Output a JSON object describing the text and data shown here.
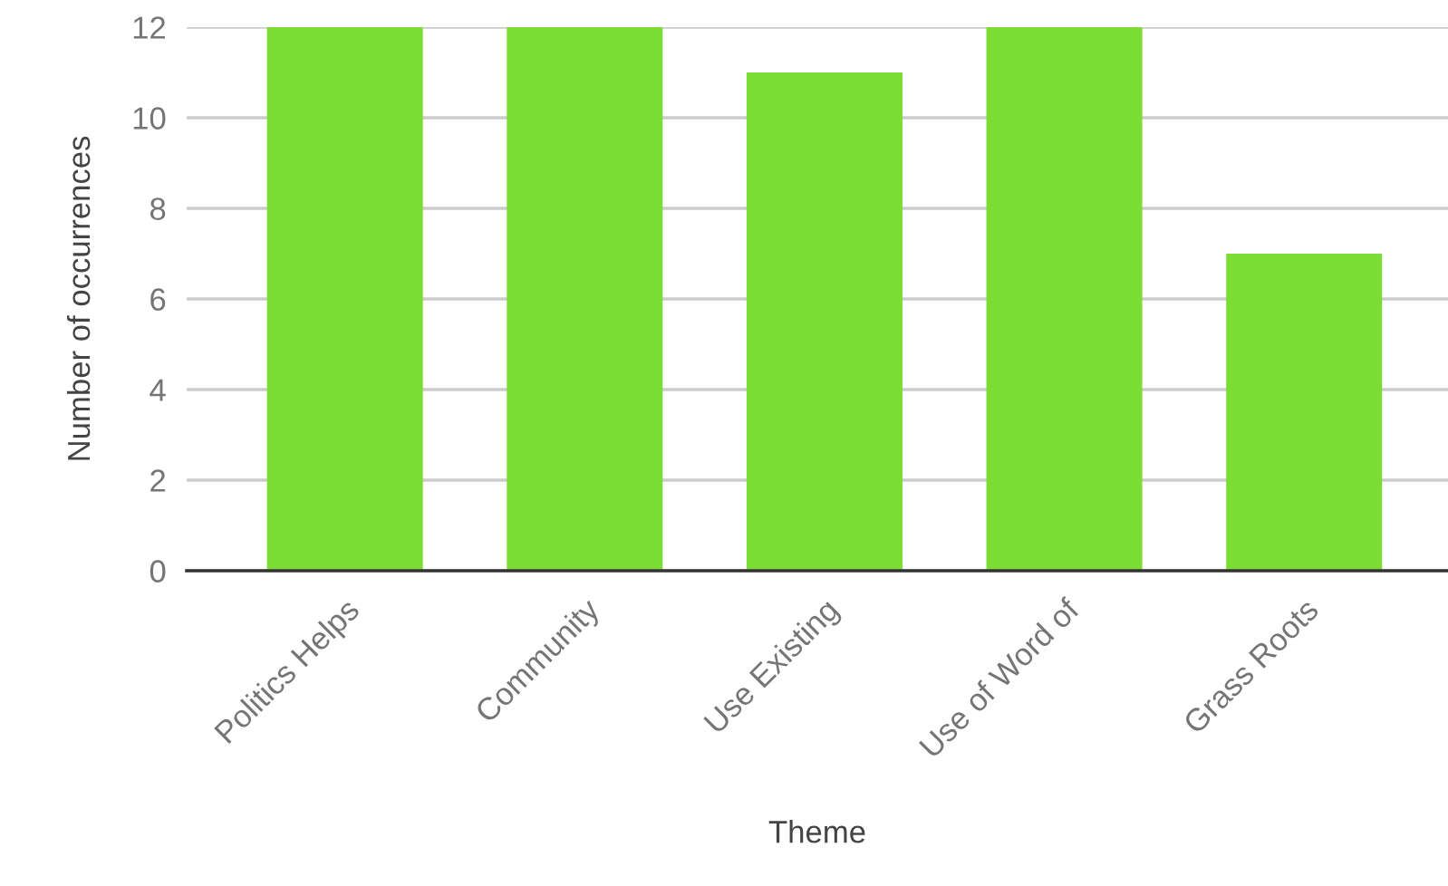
{
  "chart_data": {
    "type": "bar",
    "xlabel": "Theme",
    "ylabel": "Number of occurrences",
    "categories": [
      "Politics Helps",
      "Community",
      "Use Existing",
      "Use of Word of",
      "Grass Roots"
    ],
    "values": [
      12,
      12,
      11,
      12,
      7
    ],
    "color": "#7bdd33",
    "ylim": [
      0,
      12
    ],
    "yticks": [
      0,
      2,
      4,
      6,
      8,
      10,
      12
    ],
    "grid": "y",
    "legend": false
  }
}
